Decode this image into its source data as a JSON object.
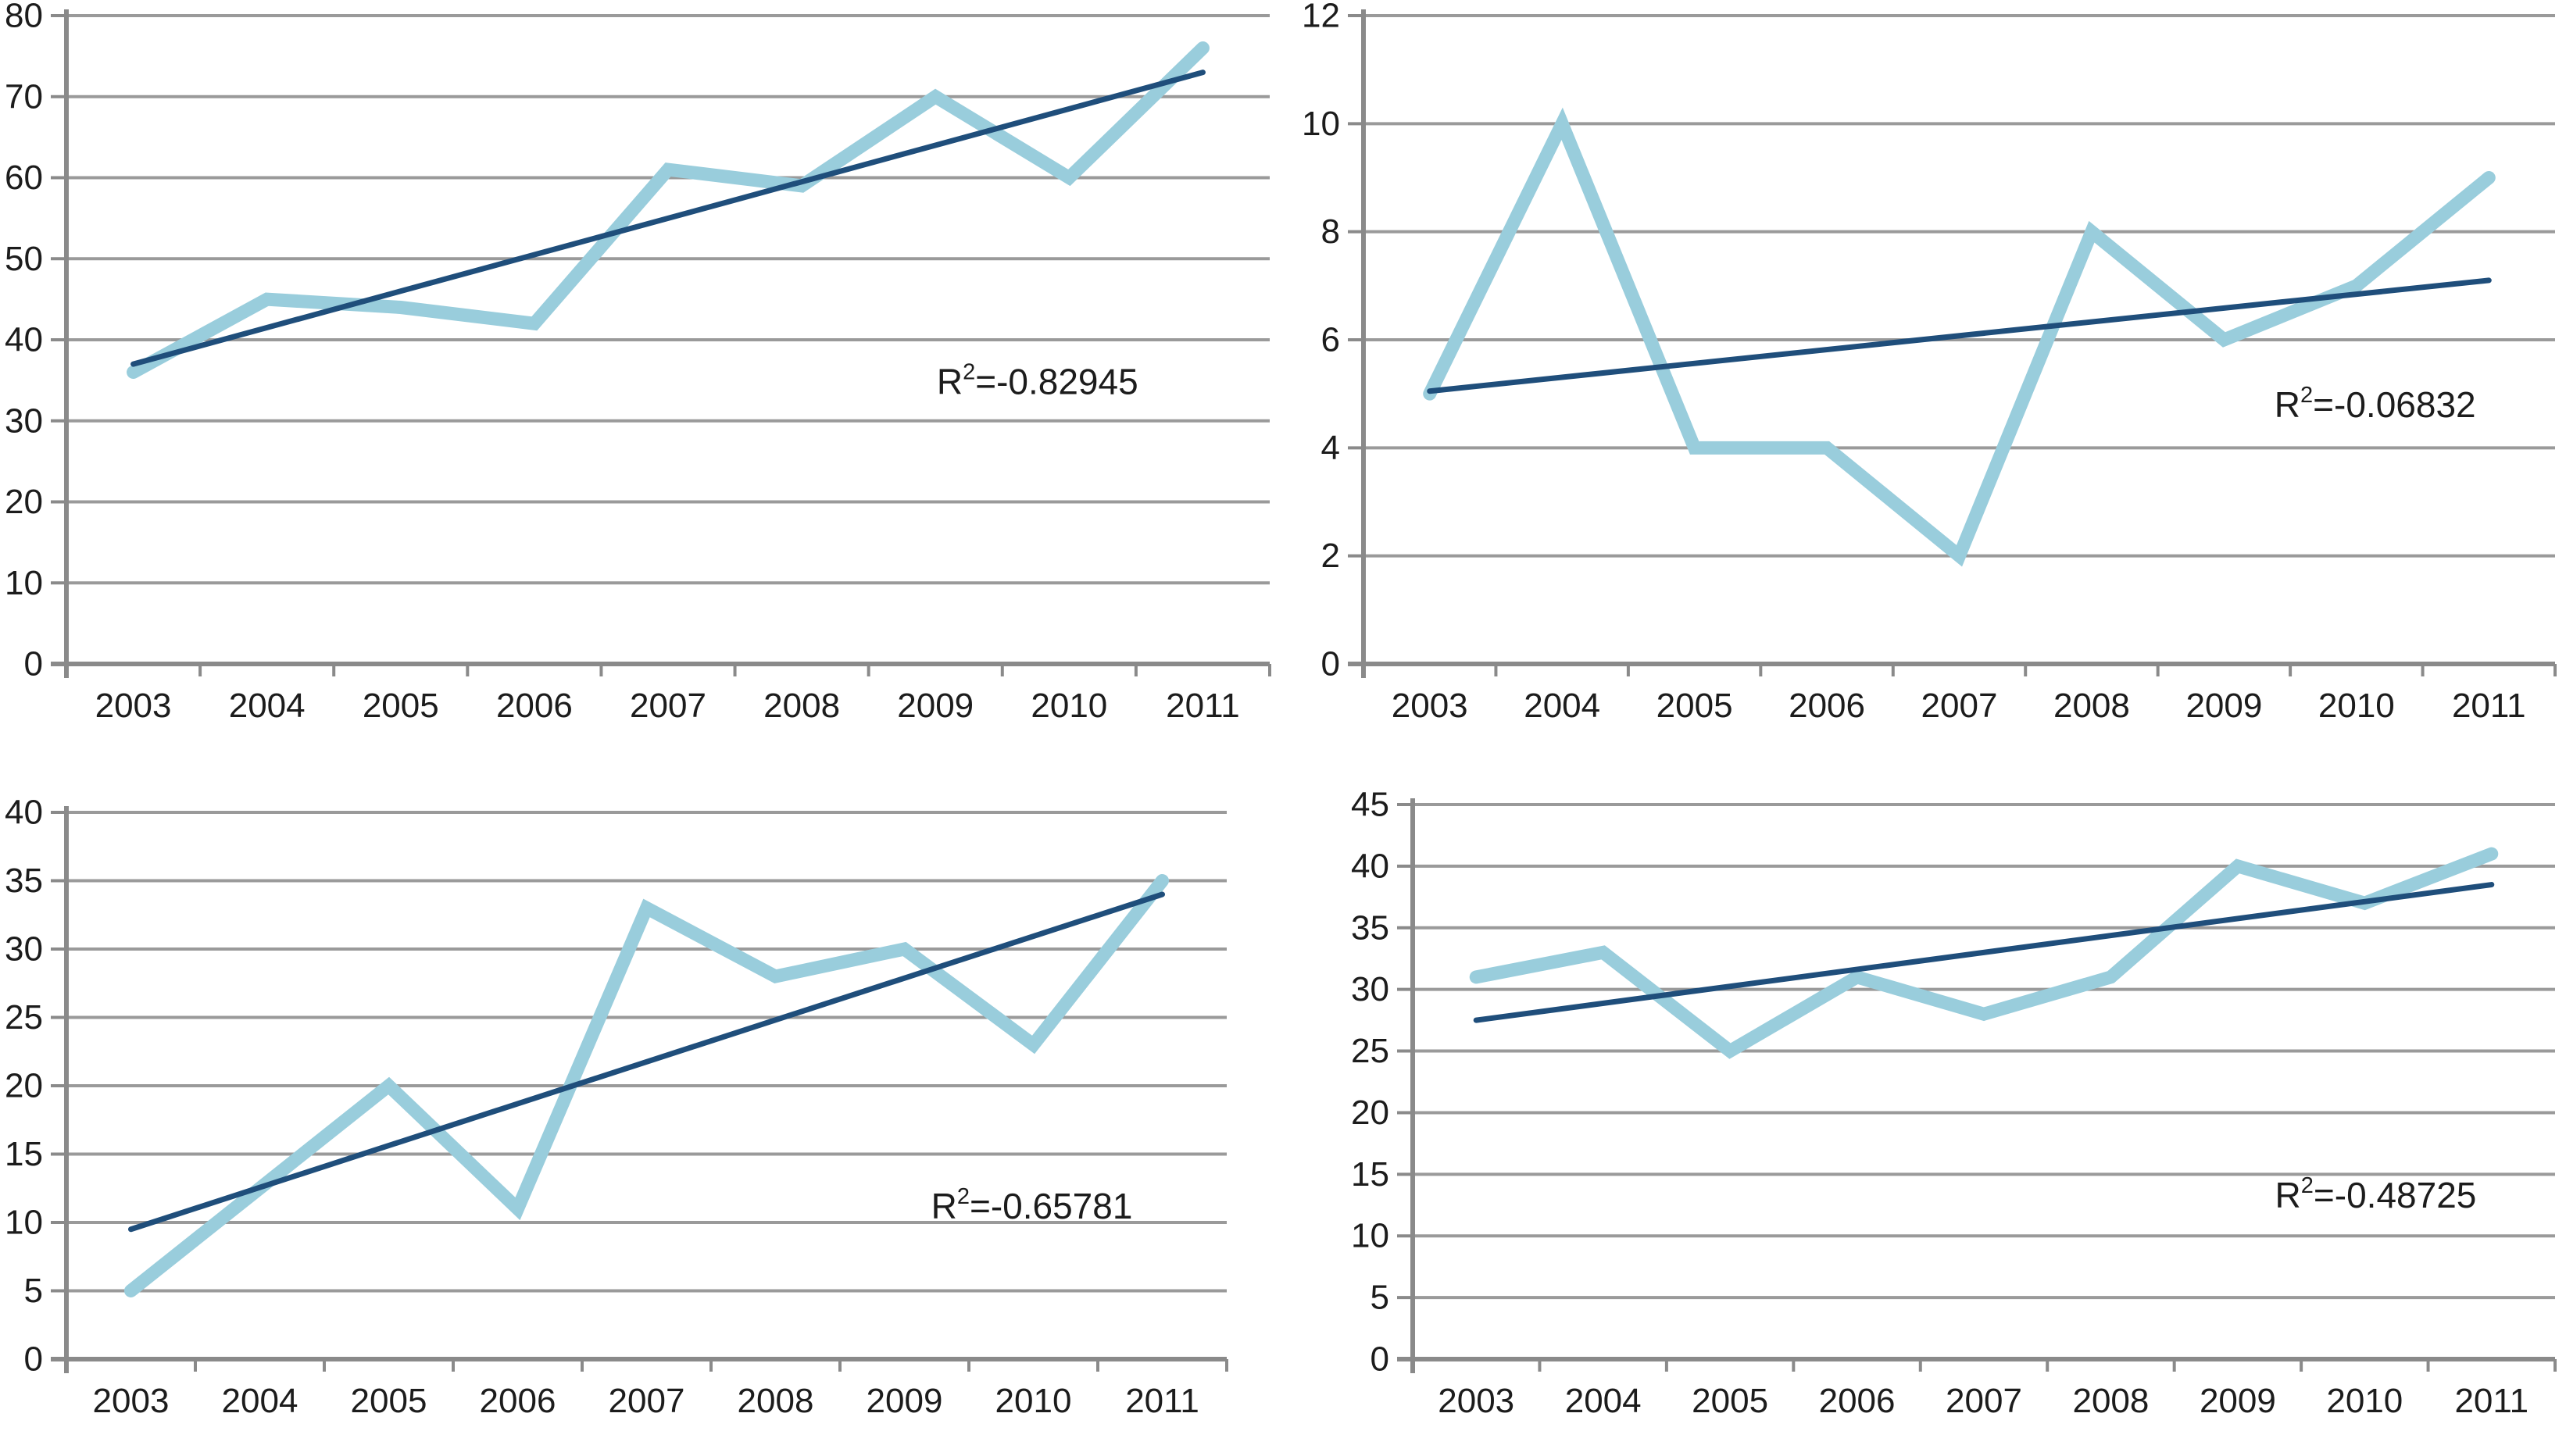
{
  "page": {
    "background": "#ffffff"
  },
  "colors": {
    "observed_line": "#99cddc",
    "trend_line": "#1f4e7b",
    "gridline": "#9a9a9a",
    "axis": "#8a8a8a",
    "label_text": "#1c1c1c"
  },
  "chart_data": [
    {
      "type": "line",
      "position": "top-left",
      "title": "",
      "xlabel": "",
      "ylabel": "",
      "categories": [
        "2003",
        "2004",
        "2005",
        "2006",
        "2007",
        "2008",
        "2009",
        "2010",
        "2011"
      ],
      "series": [
        {
          "name": "observed",
          "values": [
            36,
            45,
            44,
            42,
            61,
            59,
            70,
            60,
            76
          ]
        },
        {
          "name": "linear-trend",
          "y_start": 37,
          "y_end": 73
        }
      ],
      "ylim": [
        0,
        80
      ],
      "yticks": [
        0,
        10,
        20,
        30,
        40,
        50,
        60,
        70,
        80
      ],
      "grid": true,
      "legend": "none",
      "r2_label": {
        "base": "R",
        "superscript": "2",
        "rest": "=-0.82945"
      }
    },
    {
      "type": "line",
      "position": "top-right",
      "title": "",
      "xlabel": "",
      "ylabel": "",
      "categories": [
        "2003",
        "2004",
        "2005",
        "2006",
        "2007",
        "2008",
        "2009",
        "2010",
        "2011"
      ],
      "series": [
        {
          "name": "observed",
          "values": [
            5,
            10,
            4,
            4,
            2,
            8,
            6,
            7,
            9
          ]
        },
        {
          "name": "linear-trend",
          "y_start": 5.05,
          "y_end": 7.1
        }
      ],
      "ylim": [
        0,
        12
      ],
      "yticks": [
        0,
        2,
        4,
        6,
        8,
        10,
        12
      ],
      "grid": true,
      "legend": "none",
      "r2_label": {
        "base": "R",
        "superscript": "2",
        "rest": "=-0.06832"
      }
    },
    {
      "type": "line",
      "position": "bottom-left",
      "title": "",
      "xlabel": "",
      "ylabel": "",
      "categories": [
        "2003",
        "2004",
        "2005",
        "2006",
        "2007",
        "2008",
        "2009",
        "2010",
        "2011"
      ],
      "series": [
        {
          "name": "observed",
          "values": [
            5,
            12.5,
            20,
            11,
            33,
            28,
            30,
            23,
            35
          ]
        },
        {
          "name": "linear-trend",
          "y_start": 9.5,
          "y_end": 34
        }
      ],
      "ylim": [
        0,
        40
      ],
      "yticks": [
        0,
        5,
        10,
        15,
        20,
        25,
        30,
        35,
        40
      ],
      "grid": true,
      "legend": "none",
      "r2_label": {
        "base": "R",
        "superscript": "2",
        "rest": "=-0.65781"
      }
    },
    {
      "type": "line",
      "position": "bottom-right",
      "title": "",
      "xlabel": "",
      "ylabel": "",
      "categories": [
        "2003",
        "2004",
        "2005",
        "2006",
        "2007",
        "2008",
        "2009",
        "2010",
        "2011"
      ],
      "series": [
        {
          "name": "observed",
          "values": [
            31,
            33,
            25,
            31,
            28,
            31,
            40,
            37,
            41
          ]
        },
        {
          "name": "linear-trend",
          "y_start": 27.5,
          "y_end": 38.5
        }
      ],
      "ylim": [
        0,
        45
      ],
      "yticks": [
        0,
        5,
        10,
        15,
        20,
        25,
        30,
        35,
        40,
        45
      ],
      "grid": true,
      "legend": "none",
      "r2_label": {
        "base": "R",
        "superscript": "2",
        "rest": "=-0.48725"
      }
    }
  ]
}
